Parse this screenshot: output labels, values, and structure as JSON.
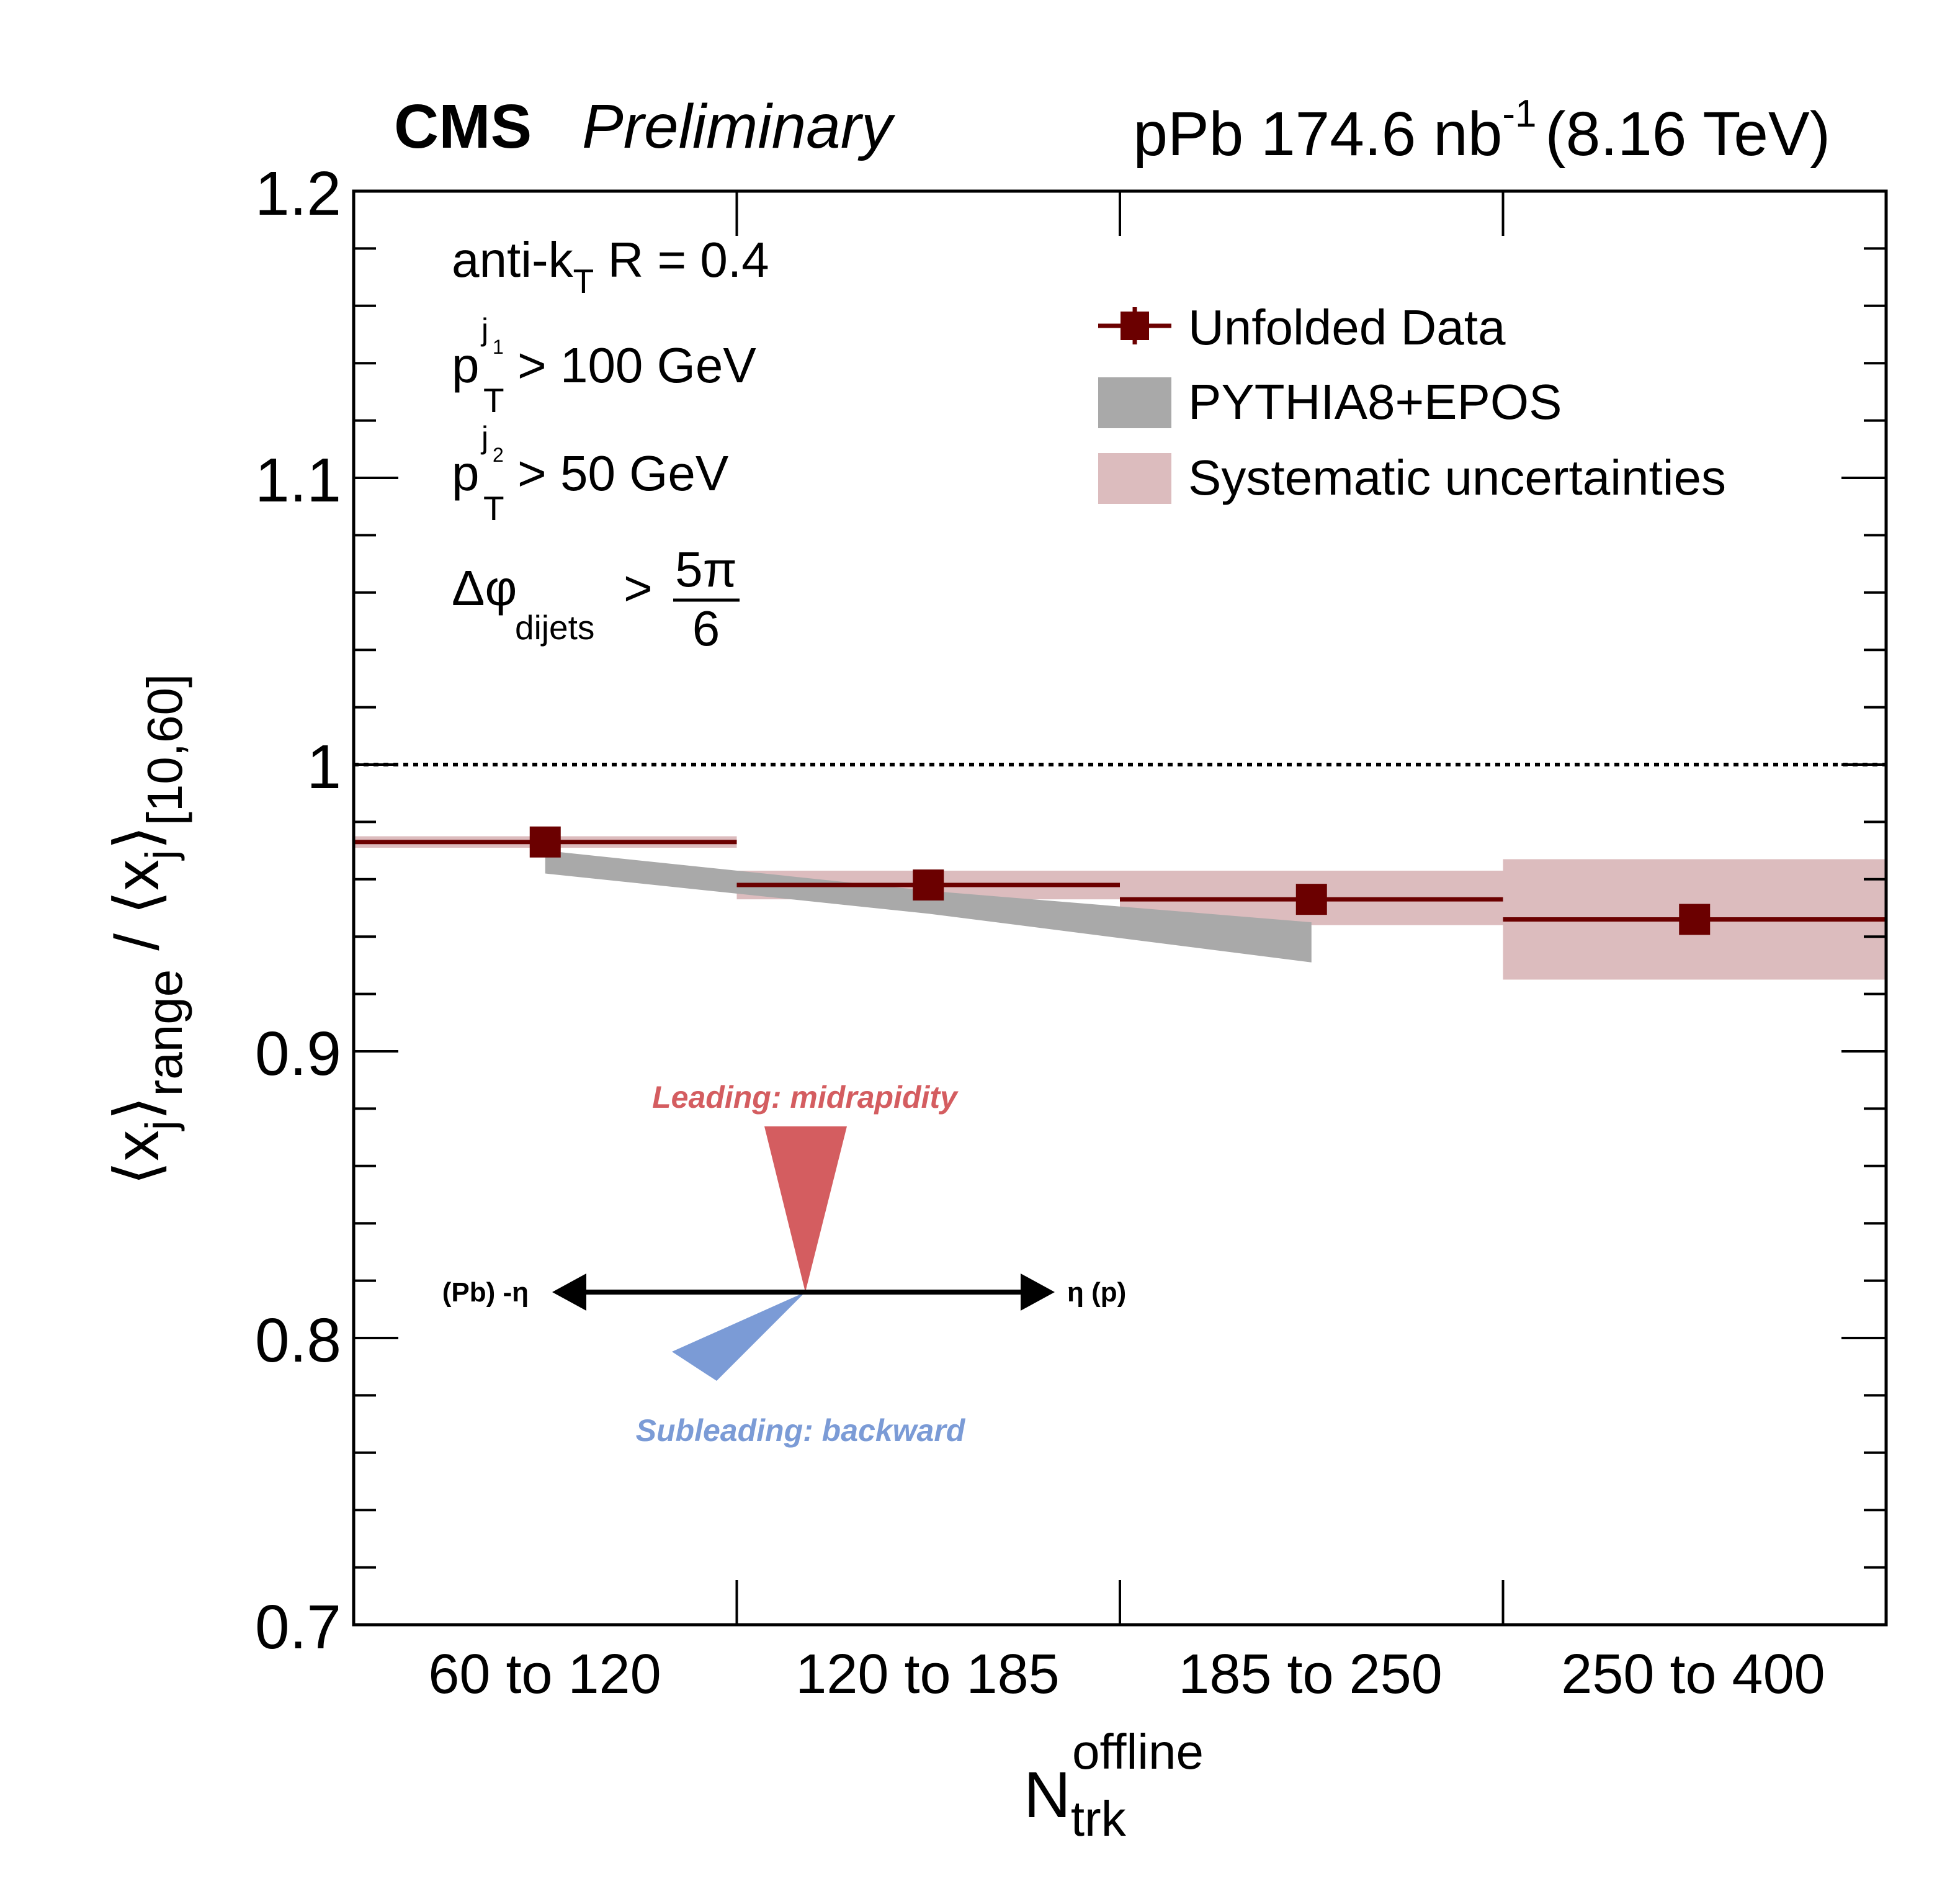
{
  "header": {
    "experiment": "CMS",
    "status": "Preliminary",
    "lumi_prefix": "pPb 174.6 nb",
    "lumi_exp": "-1",
    "energy": "(8.16 TeV)"
  },
  "cuts": {
    "jet_algo_main": "anti-k",
    "jet_algo_sub": "T",
    "jet_algo_rest": " R = 0.4",
    "pt_symbol": "p",
    "pt_sub": "T",
    "pt_sup_j": "j",
    "pt1_sup_index": "1",
    "pt1_rest": "> 100 GeV",
    "pt2_sup_index": "2",
    "pt2_rest": "> 50 GeV",
    "dphi_symbol": "Δφ",
    "dphi_sub": "dijets",
    "dphi_gt": ">",
    "dphi_num": "5π",
    "dphi_den": "6"
  },
  "legend": {
    "data": "Unfolded Data",
    "model": "PYTHIA8+EPOS",
    "syst": "Systematic uncertainties"
  },
  "diagram": {
    "leading": "Leading: midrapidity",
    "subleading": "Subleading: backward",
    "left_label": "(Pb) -η",
    "right_label": "η (p)"
  },
  "axes": {
    "y_tick_labels": [
      "0.7",
      "0.8",
      "0.9",
      "1",
      "1.1",
      "1.2"
    ],
    "y_label_parts": {
      "num_x": "x",
      "num_j": "j",
      "num_sub": "range",
      "slash": "/",
      "den_x": "x",
      "den_j": "j",
      "den_sub": "[10,60]"
    },
    "x_label_main": "N",
    "x_label_sub": "trk",
    "x_label_sup": "offline"
  },
  "colors": {
    "data": "#6b0000",
    "model": "#a9a9a9",
    "syst": "#dcbcbe",
    "leading_cone": "#d45d60",
    "subleading_cone": "#7b9bd6"
  },
  "chart_data": {
    "type": "scatter",
    "categories": [
      "60 to 120",
      "120 to 185",
      "185 to 250",
      "250 to 400"
    ],
    "ylim": [
      0.7,
      1.2
    ],
    "reference_line": 1.0,
    "series": [
      {
        "name": "Unfolded Data",
        "values": [
          0.973,
          0.958,
          0.953,
          0.946
        ],
        "syst_low": [
          0.971,
          0.953,
          0.944,
          0.925
        ],
        "syst_high": [
          0.975,
          0.963,
          0.963,
          0.967
        ]
      },
      {
        "name": "PYTHIA8+EPOS",
        "values": [
          0.966,
          0.952,
          0.939
        ],
        "band_low": [
          0.962,
          0.948,
          0.931
        ],
        "band_high": [
          0.97,
          0.956,
          0.945
        ]
      }
    ]
  }
}
